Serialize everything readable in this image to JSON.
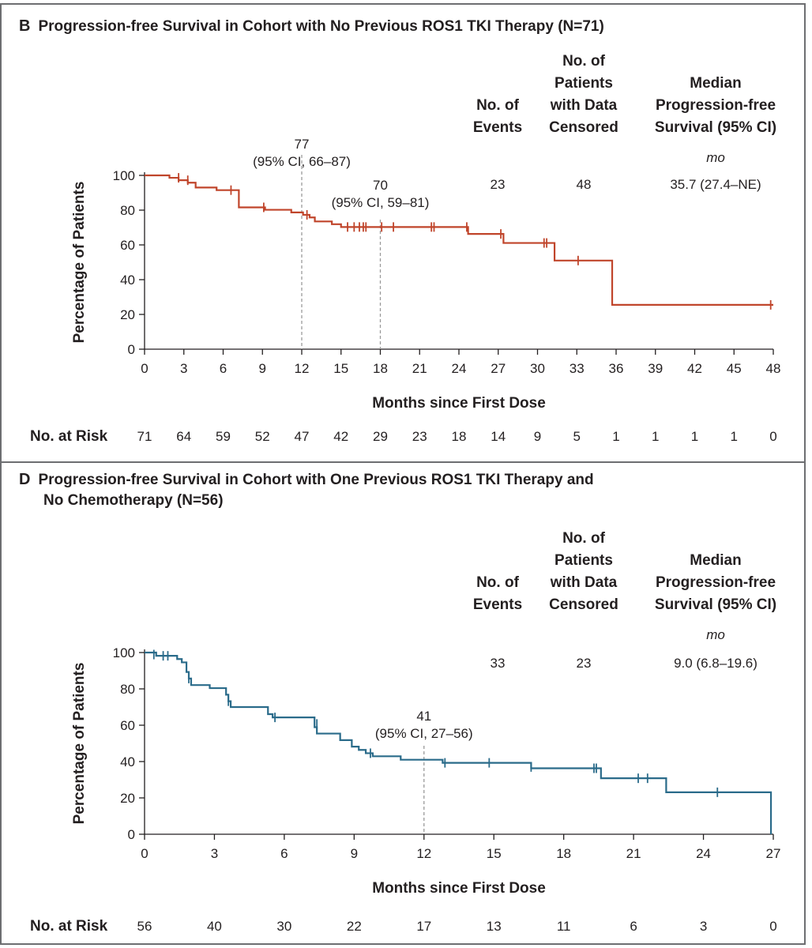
{
  "chart_data": [
    {
      "type": "line",
      "panel_letter": "B",
      "title": "Progression-free Survival in Cohort with No Previous ROS1 TKI Therapy (N=71)",
      "xlabel": "Months since First Dose",
      "ylabel": "Percentage of Patients",
      "xlim": [
        0,
        48
      ],
      "ylim": [
        0,
        100
      ],
      "x_ticks": [
        0,
        3,
        6,
        9,
        12,
        15,
        18,
        21,
        24,
        27,
        30,
        33,
        36,
        39,
        42,
        45,
        48
      ],
      "y_ticks": [
        0,
        20,
        40,
        60,
        80,
        100
      ],
      "color": "#c0452b",
      "series": [
        {
          "steps": [
            [
              0,
              100
            ],
            [
              1.9,
              98.6
            ],
            [
              2.6,
              97.2
            ],
            [
              3.3,
              95.8
            ],
            [
              3.9,
              93.0
            ],
            [
              5.5,
              91.5
            ],
            [
              7.2,
              81.6
            ],
            [
              9.2,
              80.2
            ],
            [
              11.2,
              78.7
            ],
            [
              12.1,
              77.3
            ],
            [
              12.6,
              75.8
            ],
            [
              13.0,
              73.5
            ],
            [
              14.3,
              71.9
            ],
            [
              15.0,
              70.3
            ],
            [
              24.7,
              66.3
            ],
            [
              27.4,
              61.1
            ],
            [
              31.3,
              51.0
            ],
            [
              35.7,
              25.5
            ],
            [
              48,
              25.5
            ]
          ],
          "censor": [
            [
              2.6,
              98.6
            ],
            [
              3.3,
              97.2
            ],
            [
              6.6,
              91.5
            ],
            [
              9.1,
              81.6
            ],
            [
              12.4,
              77.3
            ],
            [
              15.5,
              70.3
            ],
            [
              16.0,
              70.3
            ],
            [
              16.4,
              70.3
            ],
            [
              16.7,
              70.3
            ],
            [
              16.9,
              70.3
            ],
            [
              18.1,
              70.3
            ],
            [
              19.0,
              70.3
            ],
            [
              21.9,
              70.3
            ],
            [
              22.1,
              70.3
            ],
            [
              24.6,
              70.3
            ],
            [
              27.2,
              66.3
            ],
            [
              30.5,
              61.1
            ],
            [
              30.7,
              61.1
            ],
            [
              33.1,
              51.0
            ],
            [
              47.8,
              25.5
            ]
          ]
        }
      ],
      "annotations": [
        {
          "at_month": 12,
          "value": "77",
          "ci": "(95% CI, 66–87)"
        },
        {
          "at_month": 18,
          "value": "70",
          "ci": "(95% CI, 59–81)"
        }
      ],
      "table": {
        "headers": [
          "No. of Events",
          "No. of Patients with Data Censored",
          "Median Progression-free Survival (95% CI)"
        ],
        "unit": "mo",
        "values": [
          "23",
          "48",
          "35.7 (27.4–NE)"
        ]
      },
      "at_risk": {
        "label": "No. at Risk",
        "values": [
          "71",
          "64",
          "59",
          "52",
          "47",
          "42",
          "29",
          "23",
          "18",
          "14",
          "9",
          "5",
          "1",
          "1",
          "1",
          "1",
          "0"
        ]
      }
    },
    {
      "type": "line",
      "panel_letter": "D",
      "title": "Progression-free Survival in Cohort with One Previous ROS1 TKI Therapy and",
      "title_line2": "No Chemotherapy (N=56)",
      "xlabel": "Months since First Dose",
      "ylabel": "Percentage of Patients",
      "xlim": [
        0,
        27
      ],
      "ylim": [
        0,
        100
      ],
      "x_ticks": [
        0,
        3,
        6,
        9,
        12,
        15,
        18,
        21,
        24,
        27
      ],
      "y_ticks": [
        0,
        20,
        40,
        60,
        80,
        100
      ],
      "color": "#2a6b8a",
      "series": [
        {
          "steps": [
            [
              0,
              100
            ],
            [
              0.5,
              98.2
            ],
            [
              1.4,
              96.4
            ],
            [
              1.6,
              94.6
            ],
            [
              1.8,
              89.3
            ],
            [
              1.9,
              85.7
            ],
            [
              2.0,
              82.1
            ],
            [
              2.8,
              80.4
            ],
            [
              3.5,
              76.8
            ],
            [
              3.6,
              73.2
            ],
            [
              3.7,
              70.0
            ],
            [
              5.3,
              66.1
            ],
            [
              5.5,
              64.3
            ],
            [
              7.3,
              58.9
            ],
            [
              7.4,
              55.4
            ],
            [
              8.4,
              51.8
            ],
            [
              8.9,
              48.2
            ],
            [
              9.2,
              46.4
            ],
            [
              9.5,
              44.6
            ],
            [
              9.8,
              42.9
            ],
            [
              11.0,
              41.0
            ],
            [
              12.8,
              39.3
            ],
            [
              16.6,
              36.3
            ],
            [
              19.6,
              30.8
            ],
            [
              22.4,
              23.1
            ],
            [
              26.9,
              0
            ]
          ],
          "censor": [
            [
              0.4,
              98.9
            ],
            [
              0.8,
              98.2
            ],
            [
              1.0,
              98.2
            ],
            [
              1.9,
              85.7
            ],
            [
              3.6,
              73.2
            ],
            [
              5.6,
              64.3
            ],
            [
              7.4,
              60.7
            ],
            [
              9.7,
              44.6
            ],
            [
              12.9,
              39.3
            ],
            [
              14.8,
              39.3
            ],
            [
              16.6,
              37.0
            ],
            [
              19.3,
              36.3
            ],
            [
              19.4,
              36.3
            ],
            [
              21.2,
              30.8
            ],
            [
              21.6,
              30.8
            ],
            [
              24.6,
              23.1
            ]
          ]
        }
      ],
      "annotations": [
        {
          "at_month": 12,
          "value": "41",
          "ci": "(95% CI, 27–56)"
        }
      ],
      "table": {
        "headers": [
          "No. of Events",
          "No. of Patients with Data Censored",
          "Median Progression-free Survival (95% CI)"
        ],
        "unit": "mo",
        "values": [
          "33",
          "23",
          "9.0 (6.8–19.6)"
        ]
      },
      "at_risk": {
        "label": "No. at Risk",
        "values": [
          "56",
          "40",
          "30",
          "22",
          "17",
          "13",
          "11",
          "6",
          "3",
          "0"
        ]
      }
    }
  ]
}
